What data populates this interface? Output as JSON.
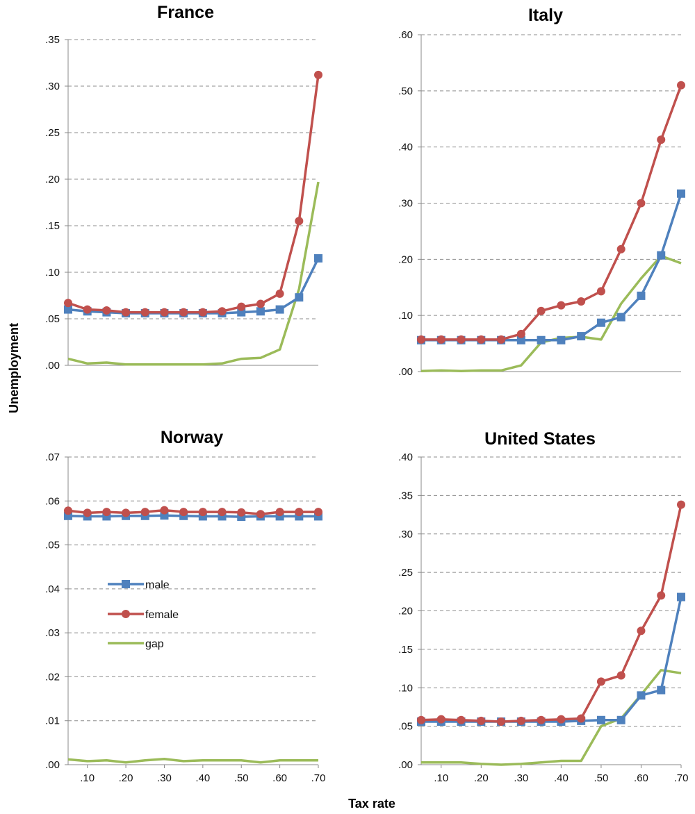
{
  "figure": {
    "ylabel": "Unemployment",
    "xlabel": "Tax rate"
  },
  "legend": [
    {
      "label": "male",
      "color": "#4f81bd",
      "marker": "square"
    },
    {
      "label": "female",
      "color": "#c0504d",
      "marker": "circle"
    },
    {
      "label": "gap",
      "color": "#9bbb59",
      "marker": "none"
    }
  ],
  "chart_data": [
    {
      "type": "line",
      "title": "France",
      "x": [
        0.05,
        0.1,
        0.15,
        0.2,
        0.25,
        0.3,
        0.35,
        0.4,
        0.45,
        0.5,
        0.55,
        0.6,
        0.65,
        0.7
      ],
      "xlim": [
        0.05,
        0.7
      ],
      "xticks": [],
      "ylim": [
        0,
        0.35
      ],
      "yticks": [
        ".00",
        ".05",
        ".10",
        ".15",
        ".20",
        ".25",
        ".30",
        ".35"
      ],
      "grid": true,
      "series": [
        {
          "name": "male",
          "values": [
            0.06,
            0.058,
            0.057,
            0.056,
            0.056,
            0.056,
            0.056,
            0.056,
            0.056,
            0.057,
            0.058,
            0.06,
            0.073,
            0.115
          ]
        },
        {
          "name": "female",
          "values": [
            0.067,
            0.06,
            0.059,
            0.057,
            0.057,
            0.057,
            0.057,
            0.057,
            0.058,
            0.063,
            0.066,
            0.077,
            0.155,
            0.312
          ]
        },
        {
          "name": "gap",
          "values": [
            0.007,
            0.002,
            0.003,
            0.001,
            0.001,
            0.001,
            0.001,
            0.001,
            0.002,
            0.007,
            0.008,
            0.017,
            0.082,
            0.197
          ]
        }
      ]
    },
    {
      "type": "line",
      "title": "Italy",
      "x": [
        0.05,
        0.1,
        0.15,
        0.2,
        0.25,
        0.3,
        0.35,
        0.4,
        0.45,
        0.5,
        0.55,
        0.6,
        0.65,
        0.7
      ],
      "xlim": [
        0.05,
        0.7
      ],
      "xticks": [],
      "ylim": [
        0,
        0.6
      ],
      "yticks": [
        ".00",
        ".10",
        ".20",
        ".30",
        ".40",
        ".50",
        ".60"
      ],
      "grid": true,
      "series": [
        {
          "name": "male",
          "values": [
            0.056,
            0.056,
            0.056,
            0.056,
            0.056,
            0.056,
            0.056,
            0.056,
            0.063,
            0.087,
            0.097,
            0.135,
            0.207,
            0.317
          ]
        },
        {
          "name": "female",
          "values": [
            0.057,
            0.057,
            0.057,
            0.057,
            0.057,
            0.067,
            0.108,
            0.118,
            0.125,
            0.143,
            0.218,
            0.3,
            0.413,
            0.51
          ]
        },
        {
          "name": "gap",
          "values": [
            0.001,
            0.002,
            0.001,
            0.002,
            0.002,
            0.011,
            0.052,
            0.06,
            0.062,
            0.057,
            0.121,
            0.166,
            0.206,
            0.193
          ]
        }
      ]
    },
    {
      "type": "line",
      "title": "Norway",
      "x": [
        0.05,
        0.1,
        0.15,
        0.2,
        0.25,
        0.3,
        0.35,
        0.4,
        0.45,
        0.5,
        0.55,
        0.6,
        0.65,
        0.7
      ],
      "xlim": [
        0.05,
        0.7
      ],
      "xticks": [
        ".10",
        ".20",
        ".30",
        ".40",
        ".50",
        ".60",
        ".70"
      ],
      "ylim": [
        0,
        0.07
      ],
      "yticks": [
        ".00",
        ".01",
        ".02",
        ".03",
        ".04",
        ".05",
        ".06",
        ".07"
      ],
      "grid": true,
      "series": [
        {
          "name": "male",
          "values": [
            0.0566,
            0.0565,
            0.0565,
            0.0566,
            0.0566,
            0.0567,
            0.0566,
            0.0565,
            0.0565,
            0.0564,
            0.0565,
            0.0565,
            0.0565,
            0.0565
          ]
        },
        {
          "name": "female",
          "values": [
            0.0578,
            0.0573,
            0.0575,
            0.0573,
            0.0575,
            0.0579,
            0.0575,
            0.0575,
            0.0575,
            0.0574,
            0.057,
            0.0575,
            0.0575,
            0.0575
          ]
        },
        {
          "name": "gap",
          "values": [
            0.0012,
            0.0008,
            0.001,
            0.0005,
            0.001,
            0.0013,
            0.0008,
            0.001,
            0.001,
            0.001,
            0.0005,
            0.001,
            0.001,
            0.001
          ]
        }
      ]
    },
    {
      "type": "line",
      "title": "United States",
      "x": [
        0.05,
        0.1,
        0.15,
        0.2,
        0.25,
        0.3,
        0.35,
        0.4,
        0.45,
        0.5,
        0.55,
        0.6,
        0.65,
        0.7
      ],
      "xlim": [
        0.05,
        0.7
      ],
      "xticks": [
        ".10",
        ".20",
        ".30",
        ".40",
        ".50",
        ".60",
        ".70"
      ],
      "ylim": [
        0,
        0.4
      ],
      "yticks": [
        ".00",
        ".05",
        ".10",
        ".15",
        ".20",
        ".25",
        ".30",
        ".35",
        ".40"
      ],
      "grid": true,
      "series": [
        {
          "name": "male",
          "values": [
            0.056,
            0.056,
            0.056,
            0.056,
            0.056,
            0.056,
            0.056,
            0.056,
            0.057,
            0.058,
            0.058,
            0.09,
            0.097,
            0.218
          ]
        },
        {
          "name": "female",
          "values": [
            0.058,
            0.059,
            0.058,
            0.057,
            0.056,
            0.057,
            0.058,
            0.059,
            0.06,
            0.108,
            0.116,
            0.174,
            0.22,
            0.338
          ]
        },
        {
          "name": "gap",
          "values": [
            0.003,
            0.003,
            0.003,
            0.001,
            0.0,
            0.001,
            0.003,
            0.005,
            0.005,
            0.05,
            0.06,
            0.091,
            0.123,
            0.119
          ]
        }
      ]
    }
  ]
}
